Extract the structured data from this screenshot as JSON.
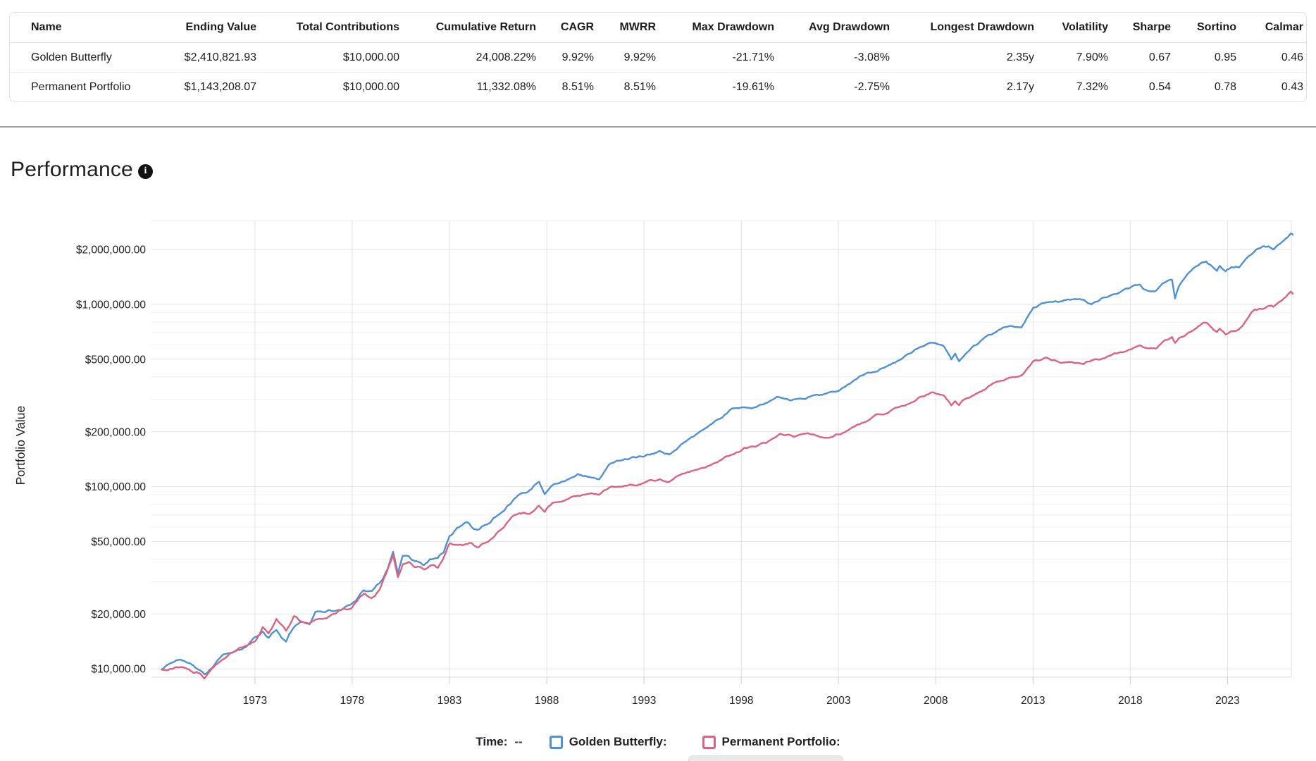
{
  "table": {
    "columns": [
      {
        "label": "Name"
      },
      {
        "label": "Ending Value"
      },
      {
        "label": "Total Contributions"
      },
      {
        "label": "Cumulative Return"
      },
      {
        "label": "CAGR"
      },
      {
        "label": "MWRR"
      },
      {
        "label": "Max Drawdown"
      },
      {
        "label": "Avg Drawdown"
      },
      {
        "label": "Longest Drawdown"
      },
      {
        "label": "Volatility"
      },
      {
        "label": "Sharpe"
      },
      {
        "label": "Sortino"
      },
      {
        "label": "Calmar"
      }
    ],
    "rows": [
      [
        "Golden Butterfly",
        "$2,410,821.93",
        "$10,000.00",
        "24,008.22%",
        "9.92%",
        "9.92%",
        "-21.71%",
        "-3.08%",
        "2.35y",
        "7.90%",
        "0.67",
        "0.95",
        "0.46"
      ],
      [
        "Permanent Portfolio",
        "$1,143,208.07",
        "$10,000.00",
        "11,332.08%",
        "8.51%",
        "8.51%",
        "-19.61%",
        "-2.75%",
        "2.17y",
        "7.32%",
        "0.54",
        "0.78",
        "0.43"
      ]
    ]
  },
  "section": {
    "title": "Performance",
    "info_icon": "info-icon",
    "info_glyph": "i"
  },
  "chart_data": {
    "type": "line",
    "title": "",
    "xlabel": "",
    "ylabel": "Portfolio Value",
    "y_scale": "log",
    "grid": true,
    "legend_position": "bottom",
    "x_range": [
      1967.68,
      2026.28
    ],
    "y_range": [
      8900,
      2880000
    ],
    "x_ticks": [
      1973,
      1978,
      1983,
      1988,
      1993,
      1998,
      2003,
      2008,
      2013,
      2018,
      2023
    ],
    "y_ticks": [
      {
        "value": 2000000,
        "label": "$2,000,000.00"
      },
      {
        "value": 1000000,
        "label": "$1,000,000.00"
      },
      {
        "value": 500000,
        "label": "$500,000.00"
      },
      {
        "value": 200000,
        "label": "$200,000.00"
      },
      {
        "value": 100000,
        "label": "$100,000.00"
      },
      {
        "value": 50000,
        "label": "$50,000.00"
      },
      {
        "value": 20000,
        "label": "$20,000.00"
      },
      {
        "value": 10000,
        "label": "$10,000.00"
      }
    ],
    "y_minor": [
      900000,
      800000,
      700000,
      600000,
      400000,
      300000,
      90000,
      80000,
      70000,
      60000,
      40000,
      30000
    ],
    "series": [
      {
        "name": "Golden Butterfly",
        "color": "#4e91d9",
        "points": [
          [
            1968.2,
            10000
          ],
          [
            1968.7,
            10500
          ],
          [
            1969.2,
            11200
          ],
          [
            1969.6,
            10700
          ],
          [
            1970.0,
            10100
          ],
          [
            1970.4,
            9000
          ],
          [
            1970.8,
            10300
          ],
          [
            1971.3,
            11700
          ],
          [
            1972.0,
            12600
          ],
          [
            1972.6,
            13400
          ],
          [
            1973.0,
            14200
          ],
          [
            1973.4,
            15500
          ],
          [
            1973.7,
            14400
          ],
          [
            1974.1,
            16300
          ],
          [
            1974.6,
            13900
          ],
          [
            1975.0,
            16500
          ],
          [
            1975.4,
            17800
          ],
          [
            1975.8,
            17300
          ],
          [
            1976.1,
            19800
          ],
          [
            1976.6,
            20500
          ],
          [
            1977.2,
            21000
          ],
          [
            1978.0,
            23000
          ],
          [
            1978.6,
            26500
          ],
          [
            1979.0,
            26000
          ],
          [
            1979.4,
            29000
          ],
          [
            1979.8,
            34500
          ],
          [
            1980.1,
            42500
          ],
          [
            1980.35,
            32500
          ],
          [
            1980.6,
            40500
          ],
          [
            1980.9,
            42500
          ],
          [
            1981.3,
            40000
          ],
          [
            1981.7,
            38500
          ],
          [
            1982.0,
            40500
          ],
          [
            1982.4,
            38800
          ],
          [
            1982.7,
            44000
          ],
          [
            1983.0,
            54000
          ],
          [
            1983.4,
            59500
          ],
          [
            1984.0,
            60500
          ],
          [
            1984.5,
            57000
          ],
          [
            1985.0,
            63500
          ],
          [
            1985.5,
            70000
          ],
          [
            1986.0,
            81000
          ],
          [
            1986.6,
            91000
          ],
          [
            1987.2,
            99000
          ],
          [
            1987.6,
            107000
          ],
          [
            1987.9,
            89000
          ],
          [
            1988.3,
            100000
          ],
          [
            1989.0,
            110000
          ],
          [
            1989.6,
            119000
          ],
          [
            1990.2,
            116000
          ],
          [
            1990.7,
            113000
          ],
          [
            1991.2,
            130000
          ],
          [
            1992.0,
            139000
          ],
          [
            1993.0,
            147000
          ],
          [
            1993.8,
            153000
          ],
          [
            1994.3,
            149000
          ],
          [
            1995.0,
            170000
          ],
          [
            1996.0,
            203000
          ],
          [
            1997.0,
            242000
          ],
          [
            1997.8,
            275000
          ],
          [
            1998.4,
            283000
          ],
          [
            1998.8,
            279000
          ],
          [
            1999.3,
            290000
          ],
          [
            2000.0,
            303000
          ],
          [
            2000.6,
            298000
          ],
          [
            2001.2,
            308000
          ],
          [
            2002.0,
            318000
          ],
          [
            2002.7,
            328000
          ],
          [
            2003.0,
            336000
          ],
          [
            2004.0,
            392000
          ],
          [
            2005.0,
            432000
          ],
          [
            2006.0,
            490000
          ],
          [
            2007.0,
            558000
          ],
          [
            2007.8,
            622000
          ],
          [
            2008.4,
            596000
          ],
          [
            2008.8,
            500000
          ],
          [
            2009.0,
            545000
          ],
          [
            2009.2,
            498000
          ],
          [
            2009.6,
            565000
          ],
          [
            2010.2,
            612000
          ],
          [
            2011.0,
            695000
          ],
          [
            2011.6,
            738000
          ],
          [
            2012.4,
            760000
          ],
          [
            2013.0,
            985000
          ],
          [
            2013.6,
            1030000
          ],
          [
            2014.2,
            1050000
          ],
          [
            2015.0,
            1075000
          ],
          [
            2015.6,
            1040000
          ],
          [
            2016.0,
            1005000
          ],
          [
            2016.5,
            1080000
          ],
          [
            2017.0,
            1135000
          ],
          [
            2017.6,
            1190000
          ],
          [
            2018.0,
            1225000
          ],
          [
            2018.5,
            1280000
          ],
          [
            2018.9,
            1195000
          ],
          [
            2019.3,
            1180000
          ],
          [
            2019.8,
            1320000
          ],
          [
            2020.15,
            1370000
          ],
          [
            2020.3,
            1075000
          ],
          [
            2020.5,
            1250000
          ],
          [
            2021.0,
            1490000
          ],
          [
            2021.5,
            1640000
          ],
          [
            2021.9,
            1750000
          ],
          [
            2022.2,
            1620000
          ],
          [
            2022.45,
            1480000
          ],
          [
            2022.6,
            1560000
          ],
          [
            2022.9,
            1445000
          ],
          [
            2023.2,
            1545000
          ],
          [
            2023.6,
            1600000
          ],
          [
            2024.0,
            1780000
          ],
          [
            2024.4,
            1950000
          ],
          [
            2024.8,
            2060000
          ],
          [
            2025.1,
            2090000
          ],
          [
            2025.35,
            2030000
          ],
          [
            2025.7,
            2190000
          ],
          [
            2026.0,
            2330000
          ],
          [
            2026.25,
            2460000
          ],
          [
            2026.4,
            2410822
          ]
        ]
      },
      {
        "name": "Permanent Portfolio",
        "color": "#e0617f",
        "points": [
          [
            1968.2,
            10000
          ],
          [
            1968.7,
            10300
          ],
          [
            1969.2,
            10600
          ],
          [
            1969.6,
            10300
          ],
          [
            1970.0,
            9900
          ],
          [
            1970.4,
            9100
          ],
          [
            1970.8,
            10200
          ],
          [
            1971.3,
            11400
          ],
          [
            1972.0,
            12200
          ],
          [
            1972.6,
            13100
          ],
          [
            1973.0,
            14200
          ],
          [
            1973.4,
            17000
          ],
          [
            1973.7,
            15600
          ],
          [
            1974.1,
            18600
          ],
          [
            1974.6,
            15400
          ],
          [
            1975.0,
            18800
          ],
          [
            1975.4,
            17600
          ],
          [
            1975.8,
            17900
          ],
          [
            1976.1,
            19300
          ],
          [
            1976.6,
            19800
          ],
          [
            1977.2,
            20300
          ],
          [
            1978.0,
            22000
          ],
          [
            1978.6,
            25500
          ],
          [
            1979.0,
            24800
          ],
          [
            1979.4,
            27500
          ],
          [
            1979.8,
            33000
          ],
          [
            1980.1,
            40000
          ],
          [
            1980.35,
            31000
          ],
          [
            1980.6,
            37500
          ],
          [
            1980.9,
            38500
          ],
          [
            1981.3,
            36500
          ],
          [
            1981.7,
            35500
          ],
          [
            1982.0,
            36500
          ],
          [
            1982.4,
            35000
          ],
          [
            1982.7,
            40000
          ],
          [
            1983.0,
            47500
          ],
          [
            1983.4,
            47500
          ],
          [
            1984.0,
            48000
          ],
          [
            1984.5,
            45500
          ],
          [
            1985.0,
            50000
          ],
          [
            1985.5,
            55000
          ],
          [
            1986.0,
            63000
          ],
          [
            1986.6,
            70000
          ],
          [
            1987.2,
            74000
          ],
          [
            1987.6,
            80000
          ],
          [
            1987.9,
            71500
          ],
          [
            1988.3,
            80500
          ],
          [
            1989.0,
            86000
          ],
          [
            1989.6,
            91000
          ],
          [
            1990.2,
            90000
          ],
          [
            1990.7,
            89500
          ],
          [
            1991.2,
            97500
          ],
          [
            1992.0,
            101000
          ],
          [
            1993.0,
            105000
          ],
          [
            1993.8,
            108000
          ],
          [
            1994.3,
            107000
          ],
          [
            1995.0,
            116000
          ],
          [
            1996.0,
            129000
          ],
          [
            1997.0,
            143000
          ],
          [
            1997.8,
            156000
          ],
          [
            1998.4,
            164000
          ],
          [
            1998.8,
            167000
          ],
          [
            1999.3,
            171000
          ],
          [
            2000.0,
            189000
          ],
          [
            2000.6,
            186000
          ],
          [
            2001.2,
            190000
          ],
          [
            2002.0,
            189000
          ],
          [
            2002.7,
            193000
          ],
          [
            2003.0,
            196000
          ],
          [
            2004.0,
            221000
          ],
          [
            2005.0,
            241000
          ],
          [
            2006.0,
            268000
          ],
          [
            2007.0,
            299000
          ],
          [
            2007.8,
            331000
          ],
          [
            2008.4,
            322000
          ],
          [
            2008.8,
            283000
          ],
          [
            2009.0,
            299000
          ],
          [
            2009.2,
            280000
          ],
          [
            2009.6,
            308000
          ],
          [
            2010.2,
            330000
          ],
          [
            2011.0,
            368000
          ],
          [
            2011.6,
            398000
          ],
          [
            2012.4,
            402000
          ],
          [
            2013.0,
            478000
          ],
          [
            2013.6,
            492000
          ],
          [
            2014.2,
            487000
          ],
          [
            2015.0,
            492000
          ],
          [
            2015.6,
            472000
          ],
          [
            2016.0,
            497000
          ],
          [
            2016.5,
            508000
          ],
          [
            2017.0,
            521000
          ],
          [
            2017.6,
            545000
          ],
          [
            2018.0,
            562000
          ],
          [
            2018.5,
            572000
          ],
          [
            2018.9,
            551000
          ],
          [
            2019.3,
            560000
          ],
          [
            2019.8,
            650000
          ],
          [
            2020.15,
            675000
          ],
          [
            2020.3,
            618000
          ],
          [
            2020.5,
            655000
          ],
          [
            2021.0,
            715000
          ],
          [
            2021.5,
            760000
          ],
          [
            2021.9,
            790000
          ],
          [
            2022.2,
            745000
          ],
          [
            2022.45,
            700000
          ],
          [
            2022.6,
            720000
          ],
          [
            2022.9,
            682000
          ],
          [
            2023.2,
            715000
          ],
          [
            2023.6,
            740000
          ],
          [
            2024.0,
            820000
          ],
          [
            2024.4,
            935000
          ],
          [
            2024.8,
            955000
          ],
          [
            2025.1,
            965000
          ],
          [
            2025.35,
            945000
          ],
          [
            2025.7,
            1010000
          ],
          [
            2026.0,
            1090000
          ],
          [
            2026.25,
            1170000
          ],
          [
            2026.4,
            1143208
          ]
        ]
      }
    ]
  },
  "legend": {
    "time_label": "Time:",
    "time_value": "--",
    "items": [
      {
        "label": "Golden Butterfly:",
        "color": "#4e91d9"
      },
      {
        "label": "Permanent Portfolio:",
        "color": "#e0617f"
      }
    ]
  }
}
